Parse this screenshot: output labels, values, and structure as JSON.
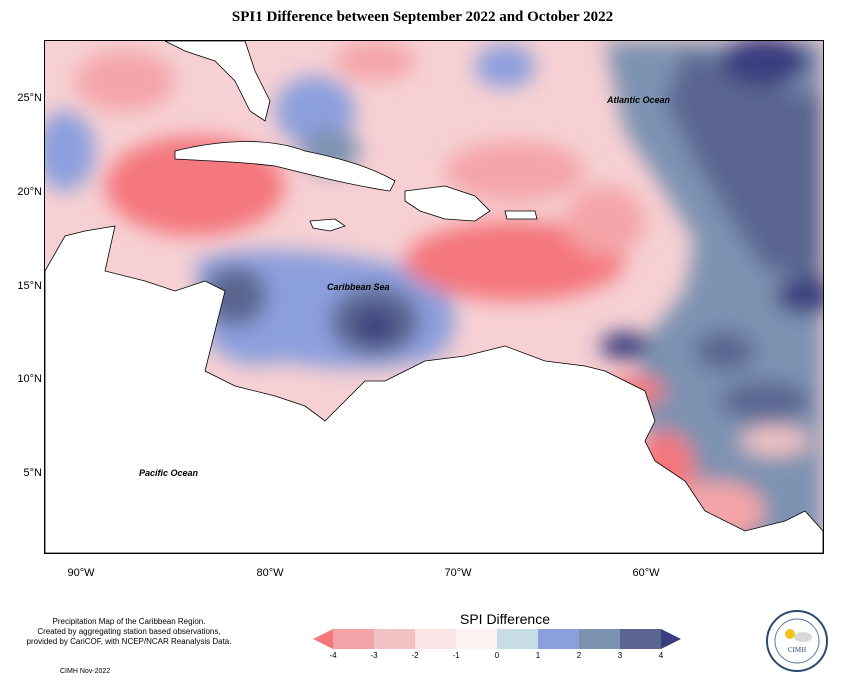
{
  "title": "SPI1 Difference between September 2022 and October 2022",
  "axes": {
    "y_labels": [
      "25°N",
      "20°N",
      "15°N",
      "10°N",
      "5°N"
    ],
    "x_labels": [
      "90°W",
      "80°W",
      "70°W",
      "60°W"
    ]
  },
  "map_labels": {
    "atlantic": "Atlantic Ocean",
    "caribbean": "Caribbean Sea",
    "pacific": "Pacific Ocean"
  },
  "legend": {
    "title": "SPI Difference",
    "ticks": [
      "-4",
      "-3",
      "-2",
      "-1",
      "0",
      "1",
      "2",
      "3",
      "4"
    ],
    "colors": [
      "#f4777d",
      "#f4a4a8",
      "#f0c2c4",
      "#fbe4e6",
      "#fdf1f1",
      "#c8dce4",
      "#8c9fdd",
      "#7d92b1",
      "#5a6690",
      "#3a3d7f"
    ]
  },
  "footer": {
    "line1": "Precipitation Map of the Caribbean Region.",
    "line2": "Created by aggregating station based observations,",
    "line3": "provided by CariCOF, with NCEP/NCAR Reanalysis Data.",
    "credit": "CIMH Nov-2022"
  },
  "logo": {
    "text": "CIMH"
  }
}
